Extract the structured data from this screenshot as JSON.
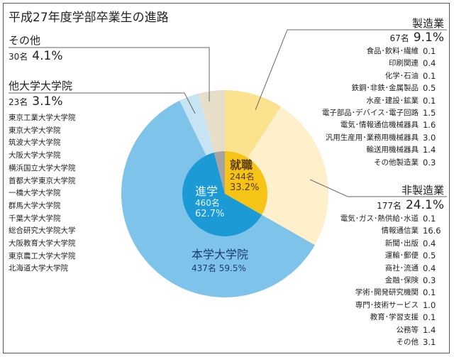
{
  "title": "平成27年度学部卒業生の進路",
  "chart_data": {
    "type": "pie",
    "title": "平成27年度学部卒業生の進路",
    "inner": [
      {
        "name": "就職",
        "count": "244名",
        "percent": 33.2,
        "color": "#f6c416"
      },
      {
        "name": "進学",
        "count": "460名",
        "percent": 62.7,
        "color": "#1b9ad6"
      },
      {
        "name": "その他",
        "percent": 4.1,
        "color": "#a3a3a3"
      }
    ],
    "outer": [
      {
        "name": "製造業",
        "count": "67名",
        "percent": 9.1,
        "color": "#fbe28f"
      },
      {
        "name": "非製造業",
        "count": "177名",
        "percent": 24.1,
        "color": "#fdf0cb"
      },
      {
        "name": "本学大学院",
        "count": "437名",
        "percent": 59.5,
        "color": "#7ec4ea"
      },
      {
        "name": "他大学大学院",
        "count": "23名",
        "percent": 3.1,
        "color": "#c6e4f4"
      },
      {
        "name": "その他",
        "count": "30名",
        "percent": 4.1,
        "color": "#e7dec9"
      }
    ]
  },
  "labels": {
    "shushoku": {
      "name": "就職",
      "count": "244名",
      "pct": "33.2%"
    },
    "shingaku": {
      "name": "進学",
      "count": "460名",
      "pct": "62.7%"
    },
    "honin": {
      "name": "本学大学院",
      "countpct": "437名 59.5%"
    },
    "other": {
      "name": "その他",
      "count": "30名",
      "pct": "4.1%"
    },
    "otheruniv": {
      "name": "他大学大学院",
      "count": "23名",
      "pct": "3.1%",
      "schools": [
        "東京工業大学大学院",
        "東京大学大学院",
        "筑波大学大学院",
        "大阪大学大学院",
        "横浜国立大学大学院",
        "首都大学東京大学院",
        "一橋大学大学院",
        "群馬大学大学院",
        "千葉大学大学院",
        "総合研究大学院大学",
        "大阪教育大学大学院",
        "東京農工大学大学院",
        "北海道大学大学院"
      ]
    },
    "manufacturing": {
      "name": "製造業",
      "count": "67名",
      "pct": "9.1%",
      "items": [
        {
          "label": "食品･飲料･繊維",
          "value": "0.1"
        },
        {
          "label": "印刷関連",
          "value": "0.4"
        },
        {
          "label": "化学･石油",
          "value": "0.1"
        },
        {
          "label": "鉄鋼･非鉄･金属製品",
          "value": "0.5"
        },
        {
          "label": "水産･建設･鉱業",
          "value": "0.1"
        },
        {
          "label": "電子部品･デバイス･電子回路",
          "value": "1.5"
        },
        {
          "label": "電気･情報通信機械器具",
          "value": "1.6"
        },
        {
          "label": "汎用生産用･業務用機械器具",
          "value": "3.0"
        },
        {
          "label": "輸送用機械器具",
          "value": "1.4"
        },
        {
          "label": "その他製造業",
          "value": "0.3"
        }
      ]
    },
    "nonmanufacturing": {
      "name": "非製造業",
      "count": "177名",
      "pct": "24.1%",
      "items": [
        {
          "label": "電気･ガス･熱供給･水道",
          "value": "0.1"
        },
        {
          "label": "情報通信業",
          "value": "16.6"
        },
        {
          "label": "新聞･出版",
          "value": "0.4"
        },
        {
          "label": "運輸･郵便",
          "value": "0.5"
        },
        {
          "label": "商社･流通",
          "value": "0.4"
        },
        {
          "label": "金融･保険",
          "value": "0.3"
        },
        {
          "label": "学術･開発研究機関",
          "value": "0.1"
        },
        {
          "label": "専門･技術サービス",
          "value": "1.0"
        },
        {
          "label": "教育･学習支援",
          "value": "0.1"
        },
        {
          "label": "公務等",
          "value": "1.4"
        },
        {
          "label": "その他",
          "value": "3.1"
        }
      ]
    }
  }
}
